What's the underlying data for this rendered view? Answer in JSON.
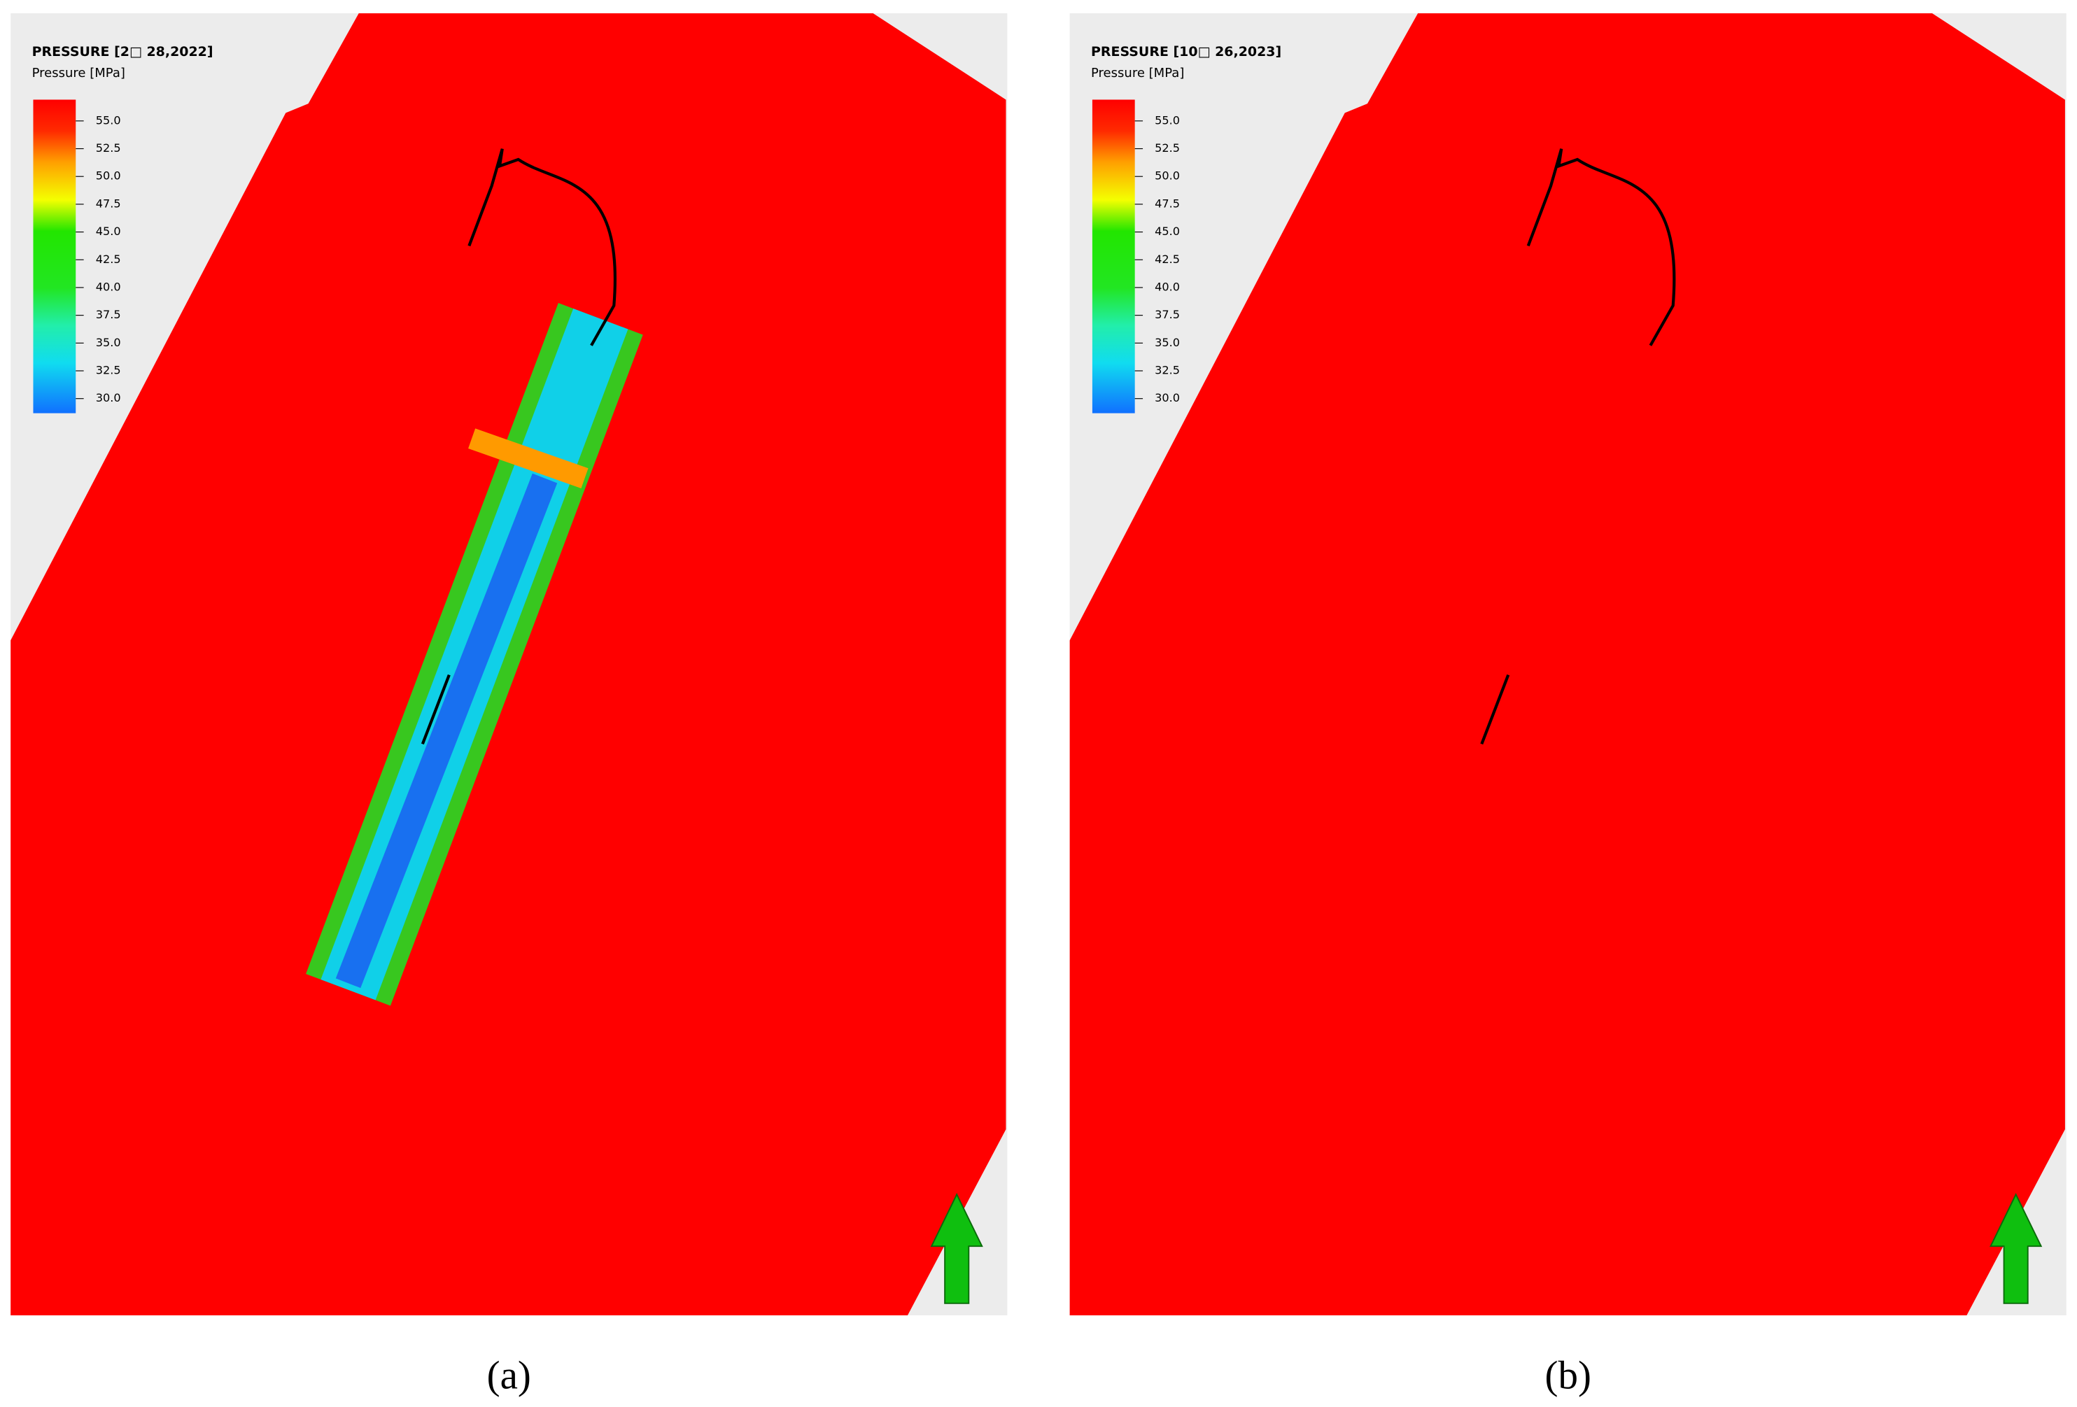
{
  "panels": [
    {
      "title": "PRESSURE [2□ 28,2022]",
      "legend_title": "Pressure [MPa]",
      "colorbar_ticks": [
        "55.0",
        "52.5",
        "50.0",
        "47.5",
        "45.0",
        "42.5",
        "40.0",
        "37.5",
        "35.0",
        "32.5",
        "30.0"
      ],
      "caption": "(a)"
    },
    {
      "title": "PRESSURE [10□ 26,2023]",
      "legend_title": "Pressure [MPa]",
      "colorbar_ticks": [
        "55.0",
        "52.5",
        "50.0",
        "47.5",
        "45.0",
        "42.5",
        "40.0",
        "37.5",
        "35.0",
        "32.5",
        "30.0"
      ],
      "caption": "(b)"
    }
  ]
}
